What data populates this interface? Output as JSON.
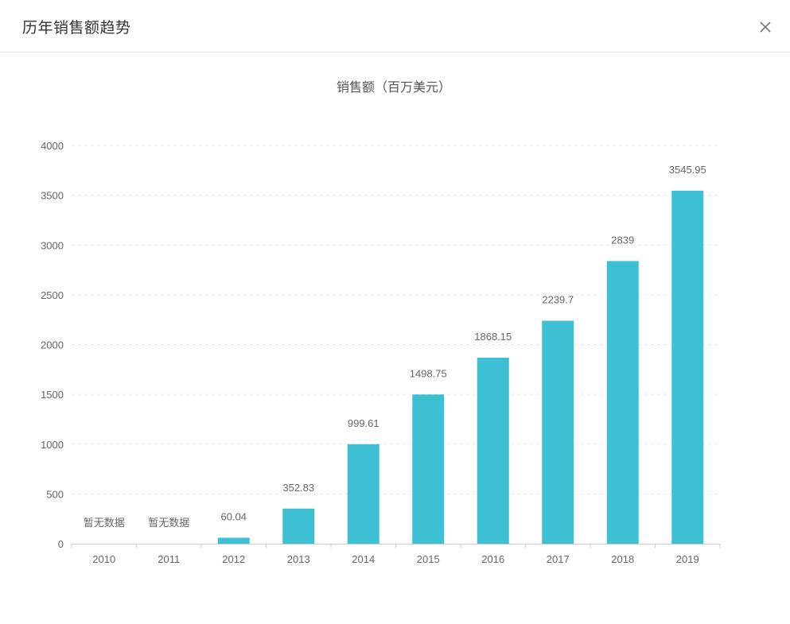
{
  "dialog": {
    "title": "历年销售额趋势",
    "close_icon": "close-icon"
  },
  "colors": {
    "bar": "#3ec0d4",
    "axis_text": "#666666",
    "grid": "#e6e6e6",
    "title_text": "#555555"
  },
  "chart_data": {
    "type": "bar",
    "title": "销售额（百万美元）",
    "categories": [
      "2010",
      "2011",
      "2012",
      "2013",
      "2014",
      "2015",
      "2016",
      "2017",
      "2018",
      "2019"
    ],
    "values": [
      null,
      null,
      60.04,
      352.83,
      999.61,
      1498.75,
      1868.15,
      2239.7,
      2839,
      3545.95
    ],
    "data_labels": [
      "暂无数据",
      "暂无数据",
      "60.04",
      "352.83",
      "999.61",
      "1498.75",
      "1868.15",
      "2239.7",
      "2839",
      "3545.95"
    ],
    "y_ticks": [
      "0",
      "500",
      "1000",
      "1500",
      "2000",
      "2500",
      "3000",
      "3500",
      "4000"
    ],
    "ylim": [
      0,
      4000
    ],
    "xlabel": "",
    "ylabel": "",
    "grid": true,
    "legend": false
  }
}
